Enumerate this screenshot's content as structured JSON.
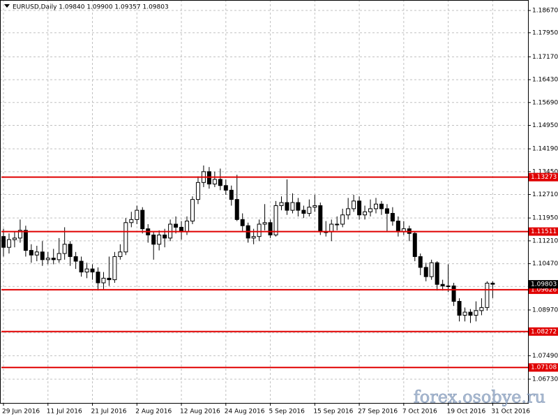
{
  "chart_data": {
    "type": "candlestick",
    "title": "EURUSD,Daily  1.09840 1.09900 1.09357 1.09803",
    "watermark": "forex.osobye.ru",
    "categories": [
      "29 Jun 2016",
      null,
      null,
      null,
      null,
      null,
      null,
      null,
      "11 Jul 2016",
      null,
      null,
      null,
      null,
      null,
      null,
      null,
      "21 Jul 2016",
      null,
      null,
      null,
      null,
      null,
      null,
      null,
      "2 Aug 2016",
      null,
      null,
      null,
      null,
      null,
      null,
      null,
      "12 Aug 2016",
      null,
      null,
      null,
      null,
      null,
      null,
      null,
      "24 Aug 2016",
      null,
      null,
      null,
      null,
      null,
      null,
      null,
      "5 Sep 2016",
      null,
      null,
      null,
      null,
      null,
      null,
      null,
      "15 Sep 2016",
      null,
      null,
      null,
      null,
      null,
      null,
      null,
      "27 Sep 2016",
      null,
      null,
      null,
      null,
      null,
      null,
      null,
      "7 Oct 2016",
      null,
      null,
      null,
      null,
      null,
      null,
      null,
      "19 Oct 2016",
      null,
      null,
      null,
      null,
      null,
      null,
      null,
      "31 Oct 2016"
    ],
    "open": [
      1.1135,
      1.11,
      1.1125,
      1.113,
      1.1155,
      1.109,
      1.1075,
      1.1085,
      1.106,
      1.1065,
      1.106,
      1.108,
      1.111,
      1.107,
      1.1055,
      1.102,
      1.103,
      1.102,
      1.0985,
      1.1,
      1.0995,
      1.107,
      1.1085,
      1.118,
      1.119,
      1.122,
      1.116,
      1.114,
      1.111,
      1.114,
      1.113,
      1.1175,
      1.1165,
      1.115,
      1.1185,
      1.1255,
      1.131,
      1.1345,
      1.1305,
      1.132,
      1.13,
      1.1285,
      1.1255,
      1.119,
      1.117,
      1.113,
      1.1135,
      1.1175,
      1.118,
      1.114,
      1.1235,
      1.1245,
      1.122,
      1.1245,
      1.122,
      1.121,
      1.123,
      1.1235,
      1.115,
      1.115,
      1.1175,
      1.1175,
      1.1205,
      1.1225,
      1.125,
      1.1205,
      1.1215,
      1.1225,
      1.124,
      1.1225,
      1.121,
      1.1185,
      1.115,
      1.116,
      1.1145,
      1.107,
      1.1035,
      1.1005,
      1.105,
      1.098,
      1.0975,
      1.0975,
      1.0925,
      1.088,
      1.089,
      1.088,
      1.0895,
      1.0905,
      1.0984
    ],
    "high": [
      1.116,
      1.1145,
      1.115,
      1.119,
      1.117,
      1.111,
      1.1105,
      1.112,
      1.1085,
      1.1095,
      1.113,
      1.1165,
      1.112,
      1.1085,
      1.107,
      1.105,
      1.1045,
      1.1035,
      1.102,
      1.107,
      1.1085,
      1.111,
      1.1195,
      1.1215,
      1.1235,
      1.123,
      1.1175,
      1.115,
      1.1155,
      1.116,
      1.119,
      1.12,
      1.1185,
      1.12,
      1.1265,
      1.133,
      1.1365,
      1.136,
      1.1345,
      1.1355,
      1.132,
      1.13,
      1.1335,
      1.121,
      1.118,
      1.116,
      1.119,
      1.124,
      1.119,
      1.125,
      1.1265,
      1.132,
      1.1275,
      1.126,
      1.1235,
      1.1255,
      1.127,
      1.1245,
      1.1185,
      1.119,
      1.12,
      1.1225,
      1.126,
      1.127,
      1.1265,
      1.1235,
      1.1255,
      1.126,
      1.125,
      1.124,
      1.123,
      1.12,
      1.1185,
      1.117,
      1.115,
      1.108,
      1.105,
      1.106,
      1.1055,
      1.0995,
      1.1045,
      1.0985,
      1.0935,
      1.0905,
      1.09,
      1.0925,
      1.0935,
      1.099,
      1.099
    ],
    "low": [
      1.107,
      1.108,
      1.11,
      1.1115,
      1.107,
      1.105,
      1.1055,
      1.104,
      1.1045,
      1.1045,
      1.105,
      1.106,
      1.104,
      1.103,
      1.1005,
      1.1,
      1.0995,
      1.096,
      1.0965,
      1.0975,
      1.0985,
      1.106,
      1.1075,
      1.1165,
      1.1175,
      1.1145,
      1.1115,
      1.106,
      1.109,
      1.11,
      1.112,
      1.1145,
      1.1125,
      1.114,
      1.1175,
      1.124,
      1.1295,
      1.129,
      1.1295,
      1.1285,
      1.127,
      1.1235,
      1.1185,
      1.115,
      1.1115,
      1.111,
      1.112,
      1.1155,
      1.113,
      1.1135,
      1.122,
      1.1205,
      1.121,
      1.12,
      1.1195,
      1.12,
      1.1215,
      1.114,
      1.1135,
      1.112,
      1.1155,
      1.1165,
      1.119,
      1.1215,
      1.119,
      1.119,
      1.12,
      1.121,
      1.1205,
      1.115,
      1.117,
      1.1135,
      1.114,
      1.112,
      1.1055,
      1.101,
      1.099,
      1.0995,
      1.096,
      1.096,
      1.0955,
      1.091,
      1.086,
      1.086,
      1.0855,
      1.086,
      1.088,
      1.0895,
      1.09357
    ],
    "close": [
      1.11,
      1.1125,
      1.113,
      1.1155,
      1.109,
      1.1075,
      1.1085,
      1.106,
      1.1065,
      1.106,
      1.108,
      1.111,
      1.107,
      1.1055,
      1.102,
      1.103,
      1.102,
      1.0985,
      1.1,
      1.0995,
      1.107,
      1.1085,
      1.118,
      1.119,
      1.122,
      1.116,
      1.114,
      1.111,
      1.114,
      1.113,
      1.1175,
      1.1165,
      1.115,
      1.1185,
      1.1255,
      1.131,
      1.1345,
      1.1305,
      1.132,
      1.13,
      1.1285,
      1.1255,
      1.119,
      1.117,
      1.113,
      1.1135,
      1.1175,
      1.118,
      1.114,
      1.1235,
      1.1245,
      1.122,
      1.1245,
      1.122,
      1.121,
      1.123,
      1.1235,
      1.115,
      1.115,
      1.1175,
      1.1175,
      1.1205,
      1.1225,
      1.125,
      1.1205,
      1.1215,
      1.1225,
      1.124,
      1.1225,
      1.121,
      1.1185,
      1.115,
      1.116,
      1.1145,
      1.107,
      1.1035,
      1.1005,
      1.105,
      1.098,
      1.0975,
      1.0975,
      1.0925,
      1.088,
      1.089,
      1.088,
      1.0895,
      1.0905,
      1.0984,
      1.09803
    ],
    "up_color": "#ffffff",
    "down_color": "#000000",
    "levels": [
      1.13273,
      1.11511,
      1.09626,
      1.08272,
      1.07108
    ],
    "level_color": "#e00000",
    "ylim": [
      1.0596,
      1.1901
    ],
    "yticks": [
      {
        "value": 1.1867,
        "label": "1.18670"
      },
      {
        "value": 1.1795,
        "label": "1.17950"
      },
      {
        "value": 1.1717,
        "label": "1.17170"
      },
      {
        "value": 1.1643,
        "label": "1.16430"
      },
      {
        "value": 1.1569,
        "label": "1.15690"
      },
      {
        "value": 1.1495,
        "label": "1.14950"
      },
      {
        "value": 1.1419,
        "label": "1.14190"
      },
      {
        "value": 1.1345,
        "label": "1.13450"
      },
      {
        "value": 1.1271,
        "label": "1.12710"
      },
      {
        "value": 1.1195,
        "label": "1.11950"
      },
      {
        "value": 1.1121,
        "label": "1.11210"
      },
      {
        "value": 1.1047,
        "label": "1.10470"
      },
      {
        "value": 1.0973,
        "label": "1.09730"
      },
      {
        "value": 1.0897,
        "label": "1.08970"
      },
      {
        "value": 1.0823,
        "label": "1.08230"
      },
      {
        "value": 1.0749,
        "label": "1.07490"
      },
      {
        "value": 1.0673,
        "label": "1.06730"
      }
    ],
    "grid": true
  }
}
